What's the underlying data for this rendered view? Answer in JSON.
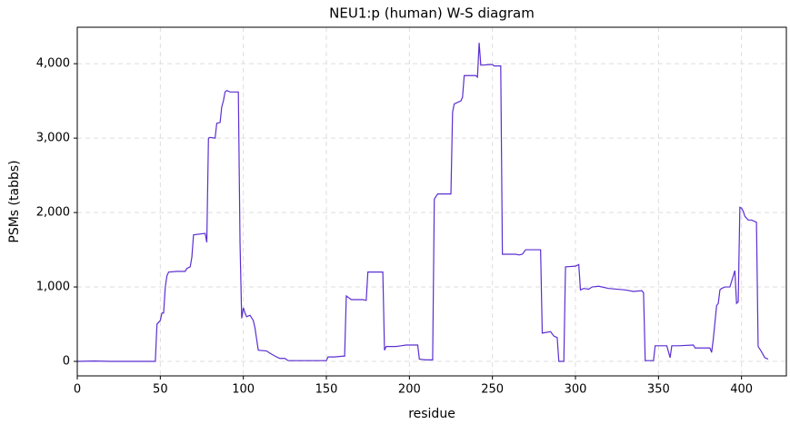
{
  "chart_data": {
    "type": "line",
    "title": "NEU1:p (human) W-S diagram",
    "x_label": "residue",
    "y_label": "PSMs (tabbs)",
    "xlim": [
      0,
      427
    ],
    "ylim": [
      -195,
      4490
    ],
    "xticks": [
      0,
      50,
      100,
      150,
      200,
      250,
      300,
      350,
      400
    ],
    "yticks": [
      0,
      {
        "value": 1000,
        "label": "1,000"
      },
      {
        "value": 2000,
        "label": "2,000"
      },
      {
        "value": 3000,
        "label": "3,000"
      },
      {
        "value": 4000,
        "label": "4,000"
      }
    ],
    "grid": true,
    "x": [
      0,
      10,
      20,
      47,
      48,
      50,
      51,
      52,
      53,
      54,
      55,
      60,
      65,
      66,
      68,
      69,
      70,
      77,
      78,
      79,
      80,
      83,
      84,
      86,
      87,
      88,
      89,
      90,
      92,
      97,
      98,
      99,
      100,
      101,
      102,
      104,
      106,
      107,
      108,
      109,
      114,
      116,
      120,
      122,
      125,
      127,
      150,
      151,
      155,
      160,
      161,
      162,
      165,
      172,
      174,
      175,
      184,
      185,
      186,
      192,
      195,
      198,
      205,
      206,
      210,
      214,
      215,
      217,
      225,
      226,
      227,
      229,
      231,
      232,
      233,
      240,
      241,
      242,
      243,
      250,
      251,
      255,
      256,
      264,
      266,
      268,
      270,
      279,
      280,
      285,
      287,
      289,
      290,
      293,
      294,
      300,
      302,
      303,
      305,
      308,
      310,
      314,
      320,
      330,
      335,
      340,
      341,
      342,
      347,
      348,
      355,
      357,
      358,
      362,
      371,
      372,
      381,
      382,
      383,
      385,
      386,
      387,
      388,
      390,
      393,
      396,
      397,
      398,
      399,
      400,
      401,
      402,
      404,
      406,
      408,
      409,
      410,
      412,
      414,
      416
    ],
    "series": [
      {
        "name": "PSMs",
        "color": "#5b2fd1",
        "values": [
          0,
          5,
          0,
          0,
          500,
          550,
          650,
          650,
          1000,
          1150,
          1200,
          1210,
          1210,
          1250,
          1270,
          1400,
          1700,
          1720,
          1600,
          3000,
          3010,
          3000,
          3200,
          3210,
          3420,
          3500,
          3620,
          3640,
          3620,
          3620,
          1600,
          580,
          720,
          650,
          600,
          620,
          550,
          450,
          300,
          150,
          140,
          110,
          60,
          40,
          40,
          10,
          10,
          60,
          60,
          70,
          70,
          880,
          830,
          830,
          820,
          1200,
          1200,
          150,
          200,
          200,
          210,
          220,
          220,
          30,
          20,
          20,
          2180,
          2250,
          2250,
          3350,
          3460,
          3480,
          3500,
          3550,
          3840,
          3840,
          3820,
          4280,
          3980,
          3990,
          3970,
          3970,
          1440,
          1440,
          1430,
          1440,
          1500,
          1500,
          380,
          400,
          340,
          320,
          0,
          0,
          1270,
          1280,
          1300,
          960,
          980,
          970,
          1000,
          1010,
          980,
          960,
          940,
          950,
          920,
          10,
          10,
          210,
          210,
          50,
          210,
          210,
          220,
          180,
          180,
          120,
          300,
          750,
          780,
          960,
          980,
          1000,
          1000,
          1220,
          780,
          800,
          2070,
          2060,
          2020,
          1950,
          1900,
          1900,
          1880,
          1870,
          200,
          130,
          50,
          30
        ]
      }
    ]
  }
}
